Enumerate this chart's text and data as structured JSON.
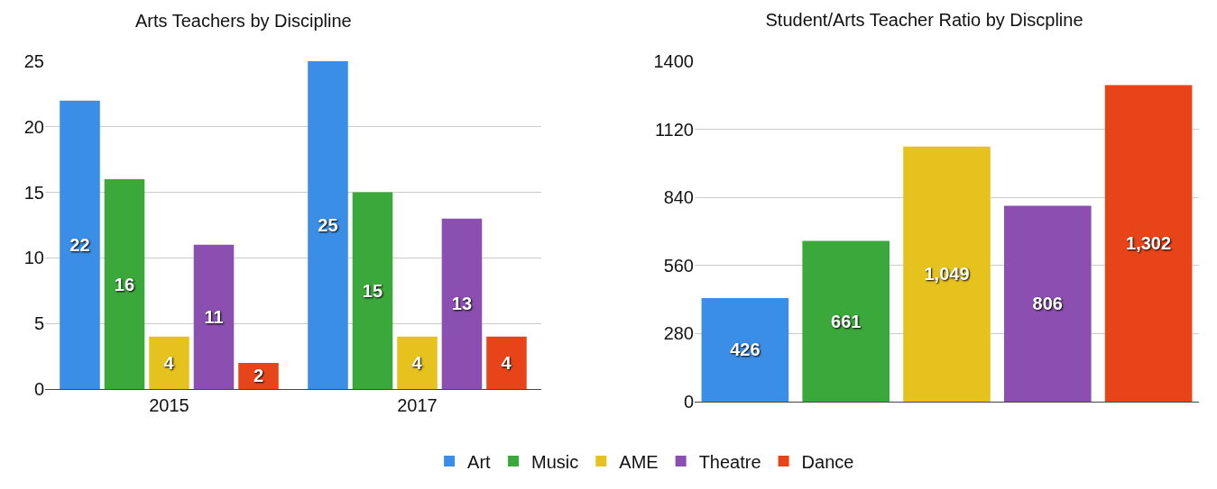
{
  "chart_data": [
    {
      "type": "bar",
      "title": "Arts Teachers by Discipline",
      "categories": [
        "2015",
        "2017"
      ],
      "ylim": [
        0,
        25
      ],
      "yticks": [
        0,
        5,
        10,
        15,
        20,
        25
      ],
      "grid": "y",
      "legend": "bottom",
      "data_labels": true,
      "series": [
        {
          "name": "Art",
          "color": "#3a8ee6",
          "values": [
            22,
            25
          ]
        },
        {
          "name": "Music",
          "color": "#3aa83a",
          "values": [
            16,
            15
          ]
        },
        {
          "name": "AME",
          "color": "#e6c21e",
          "values": [
            4,
            4
          ]
        },
        {
          "name": "Theatre",
          "color": "#8a4fb0",
          "values": [
            11,
            13
          ]
        },
        {
          "name": "Dance",
          "color": "#e8441a",
          "values": [
            2,
            4
          ]
        }
      ]
    },
    {
      "type": "bar",
      "title": "Student/Arts Teacher Ratio by Discpline",
      "categories": [
        null,
        null,
        null,
        null,
        null
      ],
      "values": [
        426,
        661,
        1049,
        806,
        1302
      ],
      "colors": [
        "#3a8ee6",
        "#3aa83a",
        "#e6c21e",
        "#8a4fb0",
        "#e8441a"
      ],
      "value_labels": [
        "426",
        "661",
        "1,049",
        "806",
        "1,302"
      ],
      "ylim": [
        0,
        1400
      ],
      "yticks": [
        0,
        280,
        560,
        840,
        1120,
        1400
      ],
      "grid": "y"
    }
  ]
}
